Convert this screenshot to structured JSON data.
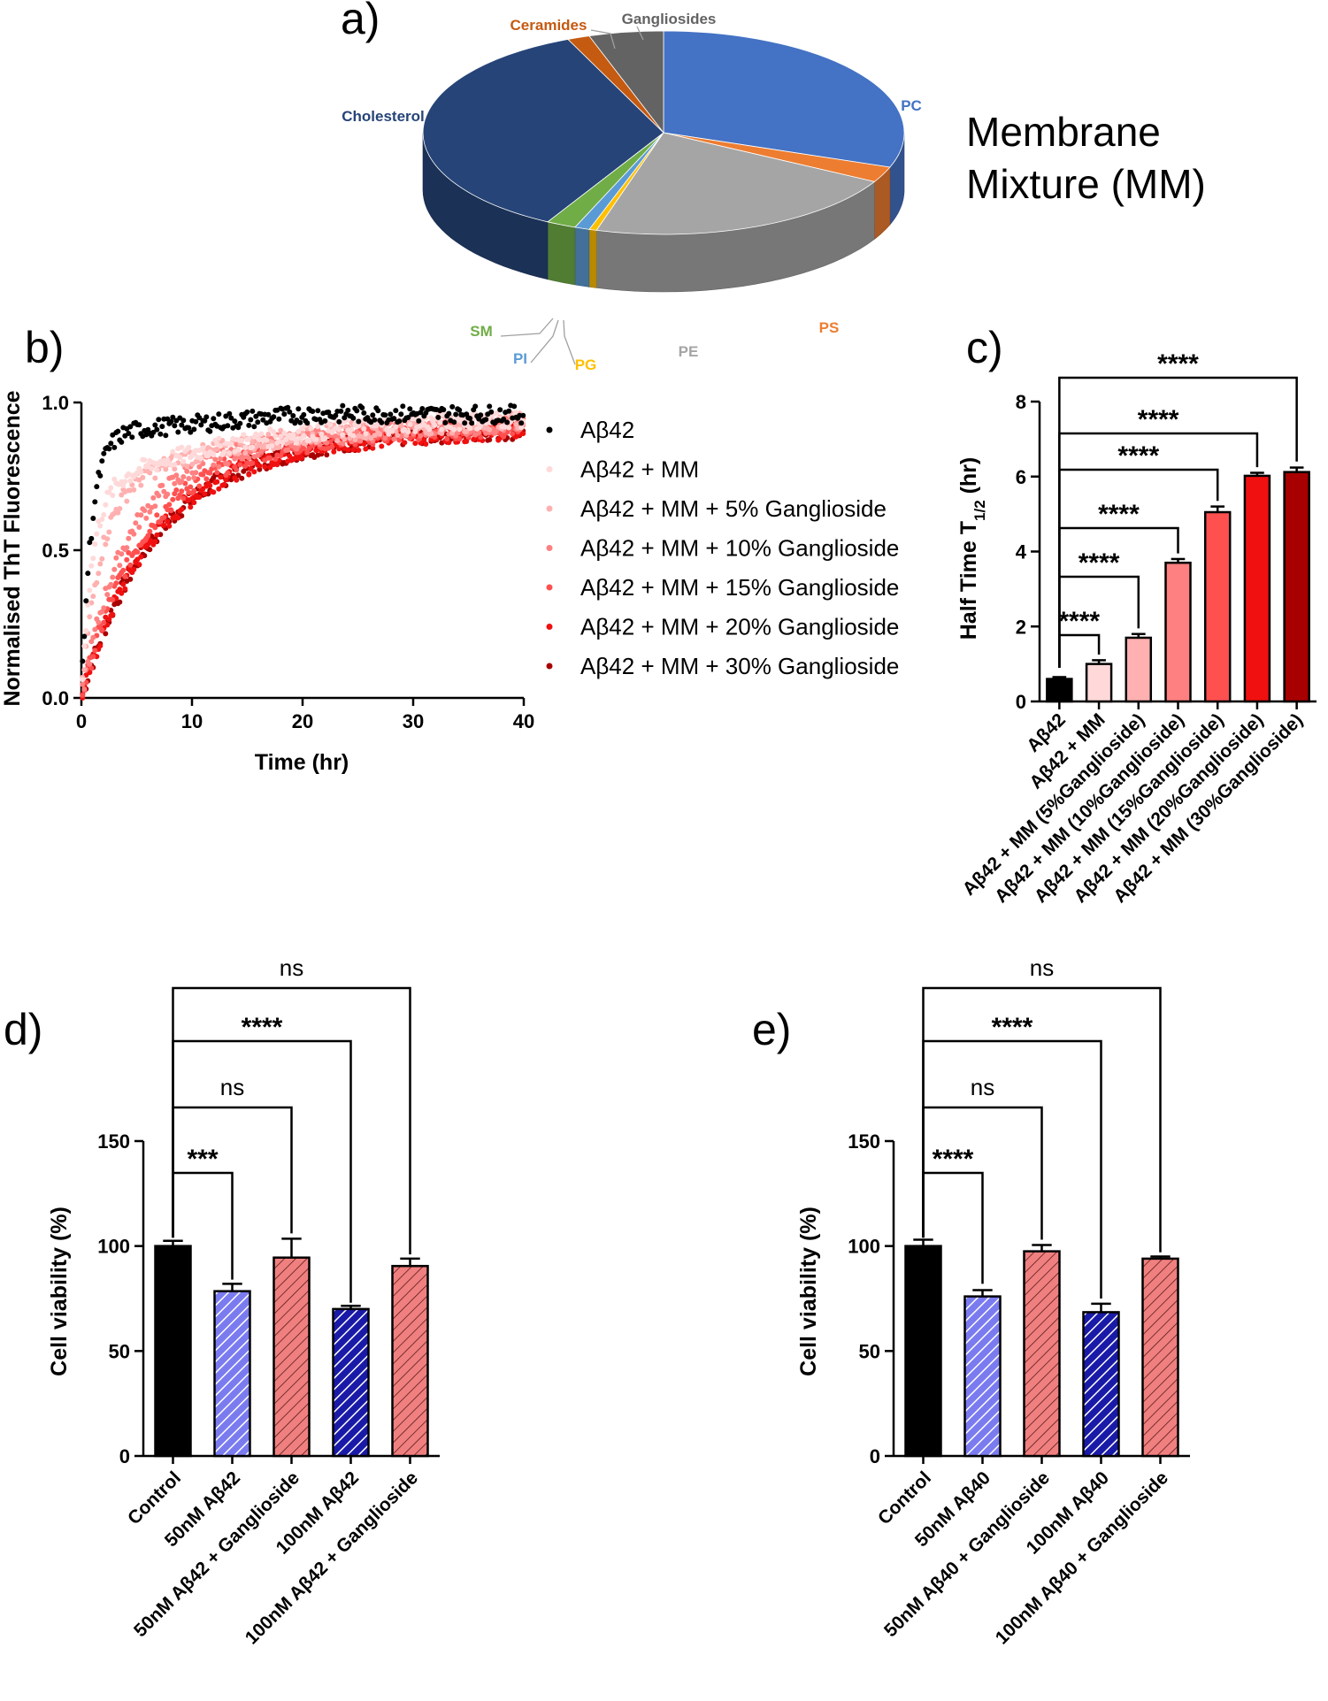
{
  "colors": {
    "PC": "#4472c4",
    "PS": "#ed7d31",
    "PE": "#a5a5a5",
    "PG": "#ffc000",
    "PI": "#5b9bd5",
    "SM": "#70ad47",
    "Cholesterol": "#264478",
    "Ceramides": "#c55a11",
    "Gangliosides": "#636363",
    "black": "#000000",
    "blue_hatch": "#7b7bf0",
    "navy_hatch": "#1a1aa8",
    "red_hatch": "#f08080",
    "series": [
      "#000000",
      "#ffd9d9",
      "#ffb0b0",
      "#ff8080",
      "#ff5050",
      "#f01010",
      "#a80000"
    ]
  },
  "panel_a": {
    "letter": "a)",
    "title_line1": "Membrane",
    "title_line2": "Mixture (MM)",
    "chart_data": {
      "type": "pie",
      "labels": [
        "PC",
        "PS",
        "PE",
        "PG",
        "PI",
        "SM",
        "Cholesterol",
        "Ceramides",
        "Gangliosides"
      ],
      "values": [
        30.5,
        2.5,
        21.5,
        0.5,
        1.0,
        2.0,
        35.5,
        1.5,
        5.0
      ]
    }
  },
  "panel_b": {
    "letter": "b)",
    "chart_data": {
      "type": "scatter",
      "xlabel": "Time (hr)",
      "ylabel": "Normalised ThT Fluorescence",
      "xlim": [
        0,
        40
      ],
      "ylim": [
        0,
        1
      ],
      "xticks": [
        "0",
        "10",
        "20",
        "30",
        "40"
      ],
      "yticks": [
        "0.0",
        "0.5",
        "1.0"
      ],
      "series": [
        {
          "name": "Aβ42",
          "t_half": 0.6,
          "plateau": 0.96
        },
        {
          "name": "Aβ42 + MM",
          "t_half": 1.0,
          "plateau": 0.96
        },
        {
          "name": "Aβ42 + MM + 5% Ganglioside",
          "t_half": 1.7,
          "plateau": 0.95
        },
        {
          "name": "Aβ42 + MM + 10% Ganglioside",
          "t_half": 3.7,
          "plateau": 0.94
        },
        {
          "name": "Aβ42 + MM + 15% Ganglioside",
          "t_half": 5.0,
          "plateau": 0.93
        },
        {
          "name": "Aβ42 + MM + 20% Ganglioside",
          "t_half": 6.0,
          "plateau": 0.92
        },
        {
          "name": "Aβ42 + MM + 30% Ganglioside",
          "t_half": 6.1,
          "plateau": 0.92
        }
      ]
    }
  },
  "panel_c": {
    "letter": "c)",
    "chart_data": {
      "type": "bar",
      "ylabel": "Half Time T",
      "ylabel_sub": "1/2",
      "ylabel_unit": " (hr)",
      "ylim": [
        0,
        8
      ],
      "yticks": [
        "0",
        "2",
        "4",
        "6",
        "8"
      ],
      "categories": [
        "Aβ42",
        "Aβ42 + MM",
        "Aβ42 + MM (5%Ganglioside)",
        "Aβ42 + MM (10%Ganglioside)",
        "Aβ42 + MM (15%Ganglioside)",
        "Aβ42 + MM (20%Ganglioside)",
        "Aβ42 + MM (30%Ganglioside)"
      ],
      "values": [
        0.6,
        1.0,
        1.7,
        3.7,
        5.05,
        6.02,
        6.12
      ],
      "errors": [
        0.05,
        0.1,
        0.1,
        0.1,
        0.15,
        0.08,
        0.12
      ],
      "significance": [
        "****",
        "****",
        "****",
        "****",
        "****",
        "****"
      ]
    }
  },
  "panel_d": {
    "letter": "d)",
    "chart_data": {
      "type": "bar",
      "ylabel": "Cell viability (%)",
      "ylim": [
        0,
        150
      ],
      "yticks": [
        "0",
        "50",
        "100",
        "150"
      ],
      "categories": [
        "Control",
        "50nM Aβ42",
        "50nM Aβ42 + Ganglioside",
        "100nM Aβ42",
        "100nM Aβ42 + Ganglioside"
      ],
      "values": [
        100,
        78.5,
        94.5,
        70,
        90.5
      ],
      "errors": [
        2.5,
        3.5,
        9,
        1.5,
        3.5
      ],
      "significance": [
        "***",
        "ns",
        "****",
        "ns"
      ]
    }
  },
  "panel_e": {
    "letter": "e)",
    "chart_data": {
      "type": "bar",
      "ylabel": "Cell viability (%)",
      "ylim": [
        0,
        150
      ],
      "yticks": [
        "0",
        "50",
        "100",
        "150"
      ],
      "categories": [
        "Control",
        "50nM Aβ40",
        "50nM Aβ40 + Ganglioside",
        "100nM Aβ40",
        "100nM Aβ40 + Ganglioside"
      ],
      "values": [
        100,
        76,
        97.5,
        68.5,
        94
      ],
      "errors": [
        3,
        3,
        3,
        4,
        1
      ],
      "significance": [
        "****",
        "ns",
        "****",
        "ns"
      ]
    }
  }
}
